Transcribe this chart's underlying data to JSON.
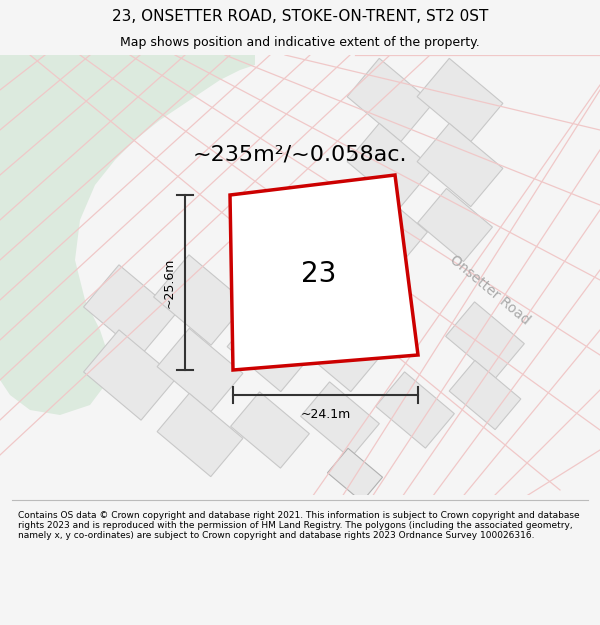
{
  "title": "23, ONSETTER ROAD, STOKE-ON-TRENT, ST2 0ST",
  "subtitle": "Map shows position and indicative extent of the property.",
  "footer": "Contains OS data © Crown copyright and database right 2021. This information is subject to Crown copyright and database rights 2023 and is reproduced with the permission of HM Land Registry. The polygons (including the associated geometry, namely x, y co-ordinates) are subject to Crown copyright and database rights 2023 Ordnance Survey 100026316.",
  "area_label": "~235m²/~0.058ac.",
  "width_label": "~24.1m",
  "height_label": "~25.6m",
  "plot_number": "23",
  "road_label": "Onsetter Road",
  "bg_color": "#f5f5f5",
  "map_bg": "#ffffff",
  "green_area_color": "#dceade",
  "plot_fill": "#ffffff",
  "plot_edge_color": "#cc0000",
  "neighbor_fill": "#e8e8e8",
  "neighbor_edge": "#e8a0a0",
  "neighbor_edge_gray": "#c8c8c8",
  "road_stroke": "#f0c8c8",
  "dim_line_color": "#333333",
  "title_fontsize": 11,
  "subtitle_fontsize": 9,
  "footer_fontsize": 6.5,
  "area_fontsize": 16,
  "number_fontsize": 20,
  "dim_fontsize": 9,
  "road_fontsize": 10
}
